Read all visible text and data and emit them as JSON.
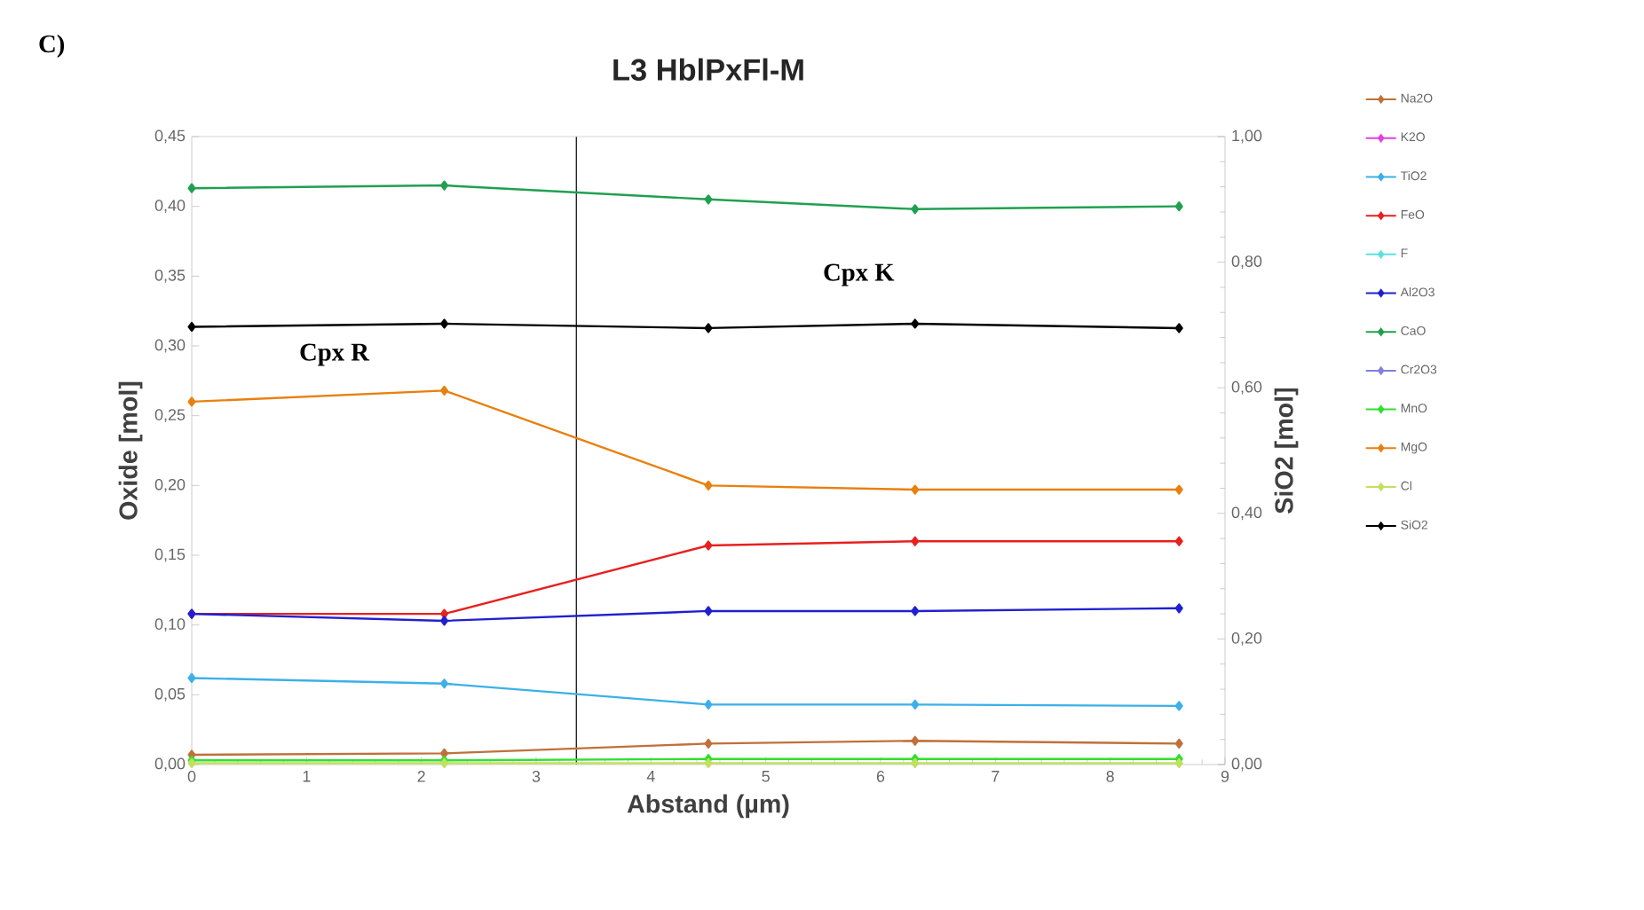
{
  "chart_data": {
    "type": "line",
    "title": "L3  HblPxFl-M",
    "xlabel": "Abstand (µm)",
    "ylabel": "Oxide [mol]",
    "y2label": "SiO2 [mol]",
    "x": [
      0,
      2.2,
      4.5,
      6.3,
      8.6
    ],
    "series": [
      {
        "name": "Na2O",
        "color": "#c0703a",
        "values": [
          0.007,
          0.008,
          0.015,
          0.017,
          0.015
        ]
      },
      {
        "name": "K2O",
        "color": "#e040e0",
        "values": [
          null,
          null,
          null,
          null,
          null
        ]
      },
      {
        "name": "TiO2",
        "color": "#3cb0e8",
        "values": [
          0.062,
          0.058,
          0.043,
          0.043,
          0.042
        ]
      },
      {
        "name": "FeO",
        "color": "#e82020",
        "values": [
          0.108,
          0.108,
          0.157,
          0.16,
          0.16
        ]
      },
      {
        "name": "F",
        "color": "#60e0e0",
        "values": [
          null,
          null,
          null,
          null,
          null
        ]
      },
      {
        "name": "Al2O3",
        "color": "#2020d0",
        "values": [
          0.108,
          0.103,
          0.11,
          0.11,
          0.112
        ]
      },
      {
        "name": "CaO",
        "color": "#20a050",
        "values": [
          0.413,
          0.415,
          0.405,
          0.398,
          0.4
        ]
      },
      {
        "name": "Cr2O3",
        "color": "#8080e0",
        "values": [
          null,
          null,
          null,
          null,
          null
        ]
      },
      {
        "name": "MnO",
        "color": "#30e030",
        "values": [
          0.003,
          0.003,
          0.004,
          0.004,
          0.004
        ]
      },
      {
        "name": "MgO",
        "color": "#e88010",
        "values": [
          0.26,
          0.268,
          0.2,
          0.197,
          0.197
        ]
      },
      {
        "name": "Cl",
        "color": "#c0e060",
        "values": [
          0.001,
          0.001,
          0.001,
          0.001,
          0.001
        ]
      },
      {
        "name": "SiO2",
        "color": "#000000",
        "axis": "y2",
        "values": [
          0.697,
          0.702,
          0.695,
          0.702,
          0.695
        ]
      }
    ],
    "xlim": [
      0,
      9
    ],
    "xticks": [
      0,
      1,
      2,
      3,
      4,
      5,
      6,
      7,
      8,
      9
    ],
    "ylim": [
      0,
      0.45
    ],
    "yticks": [
      {
        "value": 0,
        "label": "0,00"
      },
      {
        "value": 0.05,
        "label": "0,05"
      },
      {
        "value": 0.1,
        "label": "0,10"
      },
      {
        "value": 0.15,
        "label": "0,15"
      },
      {
        "value": 0.2,
        "label": "0,20"
      },
      {
        "value": 0.25,
        "label": "0,25"
      },
      {
        "value": 0.3,
        "label": "0,30"
      },
      {
        "value": 0.35,
        "label": "0,35"
      },
      {
        "value": 0.4,
        "label": "0,40"
      },
      {
        "value": 0.45,
        "label": "0,45"
      }
    ],
    "y2lim": [
      0,
      1
    ],
    "y2ticks": [
      {
        "value": 0,
        "label": "0,00"
      },
      {
        "value": 0.2,
        "label": "0,20"
      },
      {
        "value": 0.4,
        "label": "0,40"
      },
      {
        "value": 0.6,
        "label": "0,60"
      },
      {
        "value": 0.8,
        "label": "0,80"
      },
      {
        "value": 1,
        "label": "1,00"
      }
    ],
    "ref_lines": [
      {
        "axis": "x",
        "value": 3.35,
        "color": "#000000"
      }
    ],
    "annotations": [
      "C)",
      "Cpx R",
      "Cpx K"
    ],
    "marker": "diamond",
    "line_style": "solid",
    "legend": "right",
    "grid": false
  }
}
